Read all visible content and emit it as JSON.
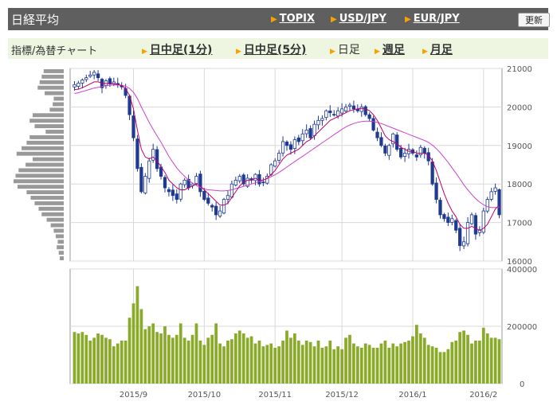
{
  "header": {
    "title": "日経平均",
    "links": [
      "TOPIX",
      "USD/JPY",
      "EUR/JPY"
    ],
    "refresh_label": "更新"
  },
  "toolbar": {
    "label": "指標/為替チャート",
    "tabs": [
      "日中足(1分)",
      "日中足(5分)",
      "日足",
      "週足",
      "月足"
    ],
    "active_tab": "日足"
  },
  "colors": {
    "header_bg": "#5f5f5f",
    "toolbar_bg": "#eef6e2",
    "accent": "#f6a300",
    "candle": "#1f3a93",
    "ma_short": "#c0006a",
    "ma_long": "#cc44cc",
    "volume": "#8aab2a",
    "volume_profile": "#999999"
  },
  "chart_data": {
    "type": "candlestick",
    "price_axis": {
      "ylim": [
        16000,
        21000
      ],
      "ticks": [
        21000,
        20000,
        19000,
        18000,
        17000,
        16000
      ]
    },
    "volume_axis": {
      "ylim": [
        0,
        400000
      ],
      "ticks": [
        400000,
        200000,
        0
      ]
    },
    "x_tick_labels": [
      "2015/9",
      "2015/10",
      "2015/11",
      "2015/12",
      "2016/1",
      "2016/2"
    ],
    "grid": true,
    "closes": [
      20580,
      20620,
      20700,
      20760,
      20830,
      20900,
      20760,
      20500,
      20680,
      20600,
      20650,
      20580,
      20520,
      20300,
      19800,
      19200,
      18400,
      17800,
      18200,
      18600,
      18900,
      18400,
      18200,
      17900,
      17800,
      17700,
      17600,
      18000,
      18100,
      17900,
      18000,
      18200,
      17800,
      17600,
      17500,
      17400,
      17200,
      17300,
      17600,
      17700,
      18000,
      18100,
      18200,
      18000,
      18150,
      18100,
      18250,
      18000,
      18050,
      18200,
      18500,
      18600,
      18800,
      19100,
      19000,
      18900,
      19150,
      19100,
      19300,
      19400,
      19200,
      19550,
      19650,
      19700,
      19900,
      19850,
      19800,
      19900,
      19950,
      20000,
      20050,
      19950,
      19900,
      20000,
      19800,
      19700,
      19400,
      19200,
      19000,
      18800,
      19000,
      19300,
      18900,
      18700,
      18800,
      18900,
      18800,
      18700,
      18950,
      18800,
      18600,
      18000,
      17600,
      17200,
      17100,
      17000,
      17100,
      16800,
      16400,
      16500,
      17000,
      17200,
      16700,
      16800,
      17300,
      17600,
      17800,
      17900,
      17200
    ],
    "ma_short": [
      20450,
      20460,
      20500,
      20550,
      20600,
      20650,
      20650,
      20620,
      20610,
      20600,
      20600,
      20580,
      20560,
      20480,
      20300,
      19950,
      19400,
      18900,
      18700,
      18650,
      18700,
      18600,
      18450,
      18300,
      18100,
      18000,
      17900,
      17850,
      17850,
      17900,
      17950,
      18000,
      17950,
      17850,
      17750,
      17650,
      17550,
      17450,
      17450,
      17500,
      17650,
      17800,
      17950,
      18050,
      18100,
      18100,
      18150,
      18100,
      18100,
      18150,
      18250,
      18350,
      18500,
      18650,
      18750,
      18800,
      18850,
      18900,
      19000,
      19100,
      19150,
      19250,
      19350,
      19450,
      19550,
      19650,
      19700,
      19750,
      19800,
      19850,
      19900,
      19930,
      19950,
      19960,
      19950,
      19900,
      19800,
      19650,
      19450,
      19250,
      19150,
      19100,
      19050,
      18950,
      18900,
      18850,
      18850,
      18800,
      18800,
      18800,
      18750,
      18600,
      18350,
      18050,
      17750,
      17500,
      17300,
      17150,
      16950,
      16850,
      16850,
      16900,
      16850,
      16800,
      16850,
      16950,
      17150,
      17350,
      17450
    ],
    "ma_long": [
      20350,
      20370,
      20400,
      20430,
      20460,
      20490,
      20510,
      20530,
      20550,
      20560,
      20570,
      20570,
      20560,
      20540,
      20480,
      20380,
      20220,
      20000,
      19800,
      19600,
      19420,
      19250,
      19080,
      18900,
      18720,
      18560,
      18420,
      18300,
      18200,
      18100,
      18020,
      17960,
      17910,
      17870,
      17850,
      17840,
      17830,
      17820,
      17820,
      17830,
      17850,
      17880,
      17910,
      17940,
      17970,
      18000,
      18030,
      18060,
      18100,
      18140,
      18190,
      18240,
      18300,
      18370,
      18440,
      18510,
      18580,
      18650,
      18720,
      18790,
      18860,
      18930,
      19000,
      19070,
      19140,
      19210,
      19280,
      19350,
      19420,
      19480,
      19530,
      19570,
      19600,
      19620,
      19630,
      19630,
      19620,
      19600,
      19570,
      19530,
      19490,
      19450,
      19410,
      19370,
      19330,
      19290,
      19250,
      19210,
      19170,
      19130,
      19080,
      19010,
      18920,
      18810,
      18690,
      18560,
      18420,
      18280,
      18130,
      17980,
      17850,
      17730,
      17620,
      17530,
      17460,
      17410,
      17390,
      17390,
      17400
    ],
    "volumes": [
      180000,
      175000,
      180000,
      170000,
      150000,
      160000,
      175000,
      170000,
      160000,
      155000,
      130000,
      140000,
      150000,
      150000,
      230000,
      280000,
      340000,
      260000,
      190000,
      200000,
      210000,
      180000,
      175000,
      200000,
      170000,
      160000,
      170000,
      210000,
      160000,
      150000,
      170000,
      210000,
      150000,
      135000,
      160000,
      170000,
      210000,
      140000,
      130000,
      150000,
      155000,
      175000,
      185000,
      175000,
      160000,
      165000,
      140000,
      150000,
      130000,
      135000,
      140000,
      125000,
      130000,
      150000,
      185000,
      160000,
      175000,
      150000,
      135000,
      150000,
      145000,
      130000,
      150000,
      125000,
      130000,
      150000,
      120000,
      130000,
      120000,
      160000,
      170000,
      140000,
      130000,
      125000,
      140000,
      135000,
      125000,
      125000,
      140000,
      150000,
      125000,
      140000,
      130000,
      140000,
      145000,
      150000,
      165000,
      205000,
      175000,
      160000,
      135000,
      130000,
      125000,
      110000,
      110000,
      120000,
      145000,
      150000,
      180000,
      185000,
      170000,
      140000,
      150000,
      150000,
      195000,
      175000,
      160000,
      160000,
      155000
    ],
    "volume_profile": [
      0.4,
      0.44,
      0.48,
      0.52,
      0.38,
      0.2,
      0.22,
      0.28,
      0.62,
      0.68,
      0.58,
      0.36,
      0.68,
      0.74,
      0.84,
      0.94,
      0.62,
      0.76,
      0.9,
      0.96,
      1.0,
      0.92,
      0.74,
      0.66,
      0.58,
      0.5,
      0.44,
      0.34,
      0.26,
      0.2,
      0.16,
      0.12,
      0.14,
      0.1,
      0.08
    ]
  }
}
